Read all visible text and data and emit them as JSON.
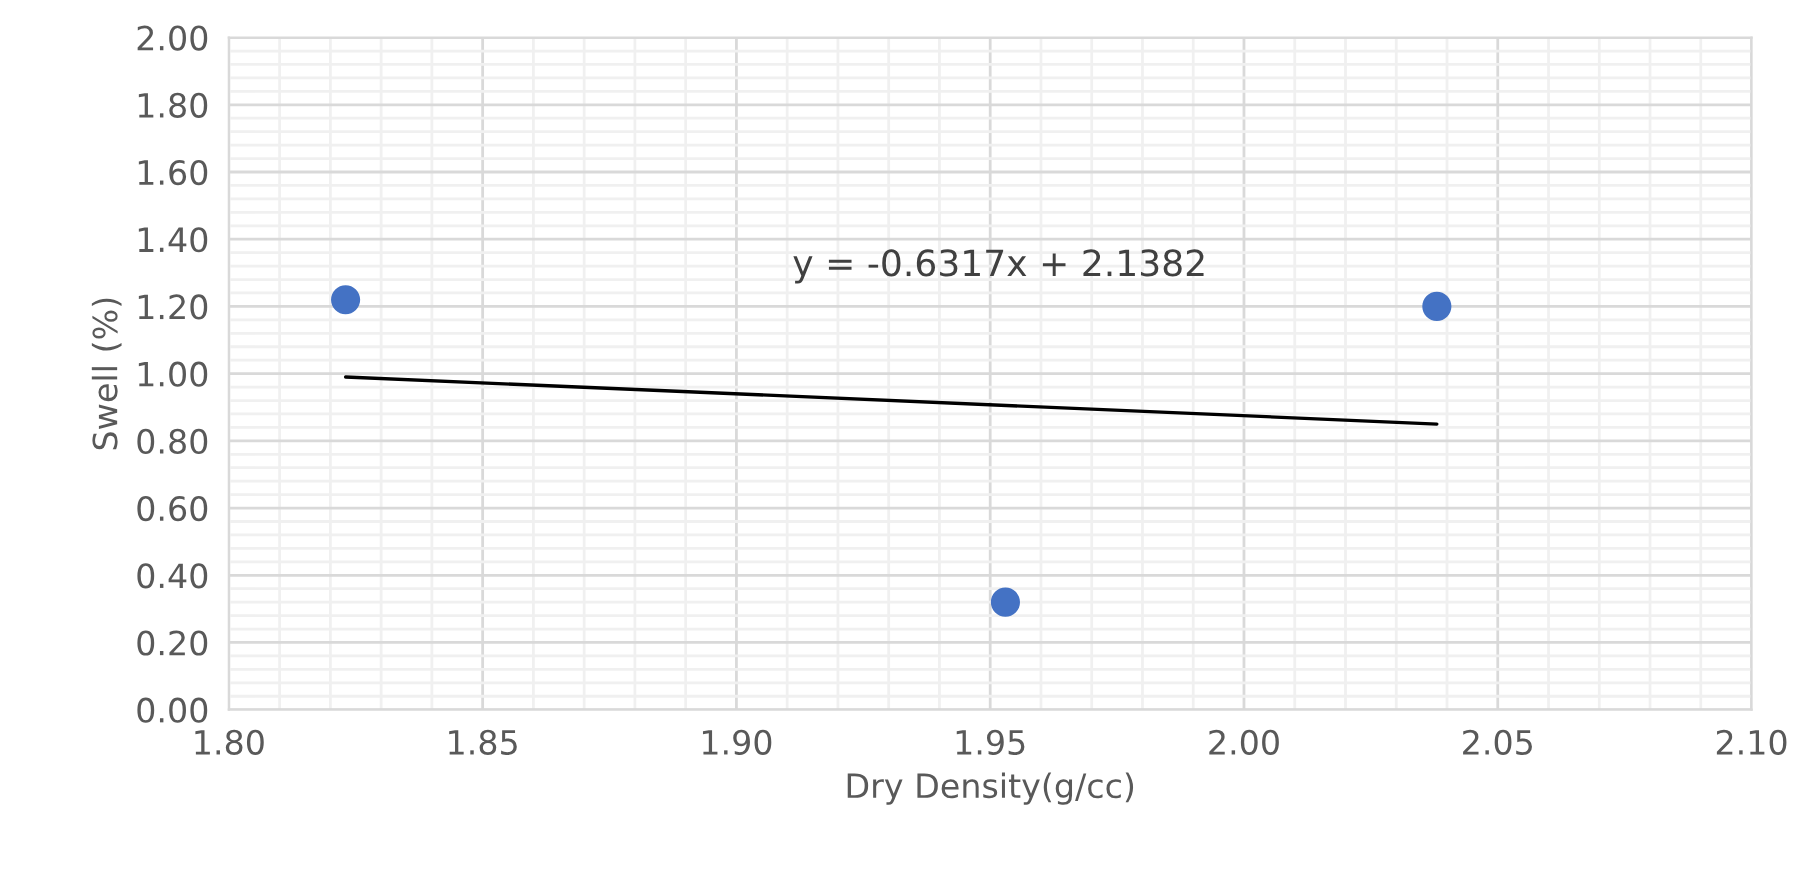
{
  "chart_data": {
    "type": "scatter",
    "xlabel": "Dry Density(g/cc)",
    "ylabel": "Swell (%)",
    "series": [
      {
        "color": "#4472c4",
        "x": [
          1.823,
          1.953,
          2.038
        ],
        "values": [
          1.22,
          0.32,
          1.2
        ]
      },
      {
        "type": "line",
        "color": "#000000",
        "x": [
          1.823,
          2.038
        ],
        "values": [
          0.99,
          0.85
        ]
      }
    ],
    "annotations": [
      {
        "text": "y = -0.6317x + 2.1382"
      }
    ],
    "xlim": [
      1.8,
      2.1
    ],
    "xticks": [
      {
        "value": 1.8,
        "label": "1.80"
      },
      {
        "value": 1.85,
        "label": "1.85"
      },
      {
        "value": 1.9,
        "label": "1.90"
      },
      {
        "value": 1.95,
        "label": "1.95"
      },
      {
        "value": 2.0,
        "label": "2.00"
      },
      {
        "value": 2.05,
        "label": "2.05"
      },
      {
        "value": 2.1,
        "label": "2.10"
      }
    ],
    "ylim": [
      0,
      2
    ],
    "yticks": [
      {
        "value": 0,
        "label": "0.00"
      },
      {
        "value": 0.2,
        "label": "0.20"
      },
      {
        "value": 0.4,
        "label": "0.40"
      },
      {
        "value": 0.6,
        "label": "0.60"
      },
      {
        "value": 0.8,
        "label": "0.80"
      },
      {
        "value": 1.0,
        "label": "1.00"
      },
      {
        "value": 1.2,
        "label": "1.20"
      },
      {
        "value": 1.4,
        "label": "1.40"
      },
      {
        "value": 1.6,
        "label": "1.60"
      },
      {
        "value": 1.8,
        "label": "1.80"
      },
      {
        "value": 2.0,
        "label": "2.00"
      }
    ],
    "grid": true,
    "legend": false
  }
}
